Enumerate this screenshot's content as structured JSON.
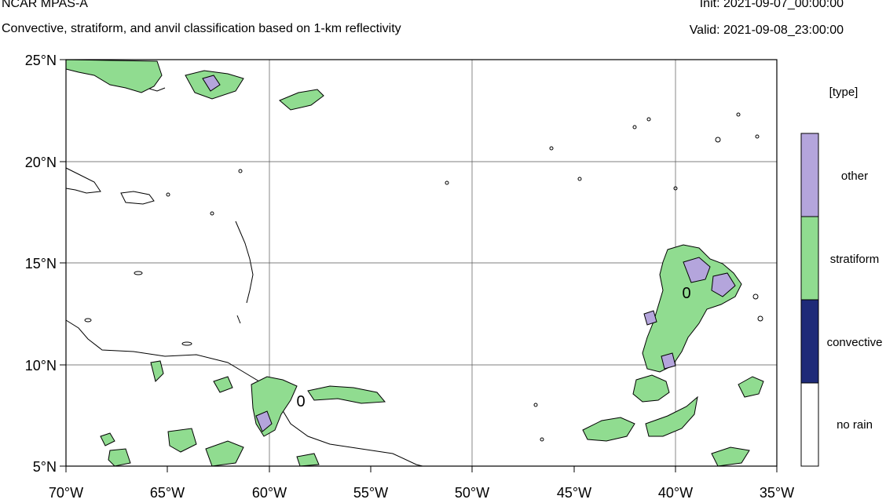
{
  "header": {
    "title": "NCAR MPAS-A",
    "subtitle": "Convective, stratiform, and anvil classification based on 1-km reflectivity",
    "init": "Init: 2021-09-07_00:00:00",
    "valid": "Valid: 2021-09-08_23:00:00"
  },
  "map": {
    "lon_range": [
      -70,
      -35
    ],
    "lat_range": [
      5,
      25
    ],
    "lon_ticks": [
      "70°W",
      "65°W",
      "60°W",
      "55°W",
      "50°W",
      "45°W",
      "40°W",
      "35°W"
    ],
    "lat_ticks": [
      "25°N",
      "20°N",
      "15°N",
      "10°N",
      "5°N"
    ],
    "gridlines": true,
    "contour_labels": [
      "0",
      "0"
    ]
  },
  "legend": {
    "title": "[type]",
    "items": [
      {
        "label": "other",
        "color": "#b4a5dc"
      },
      {
        "label": "stratiform",
        "color": "#90dc90"
      },
      {
        "label": "convective",
        "color": "#1e2a78"
      },
      {
        "label": "no rain",
        "color": "#ffffff"
      }
    ]
  },
  "colors": {
    "other": "#b4a5dc",
    "stratiform": "#90dc90",
    "convective": "#1e2a78",
    "outline": "#000000",
    "grid": "#555555"
  }
}
